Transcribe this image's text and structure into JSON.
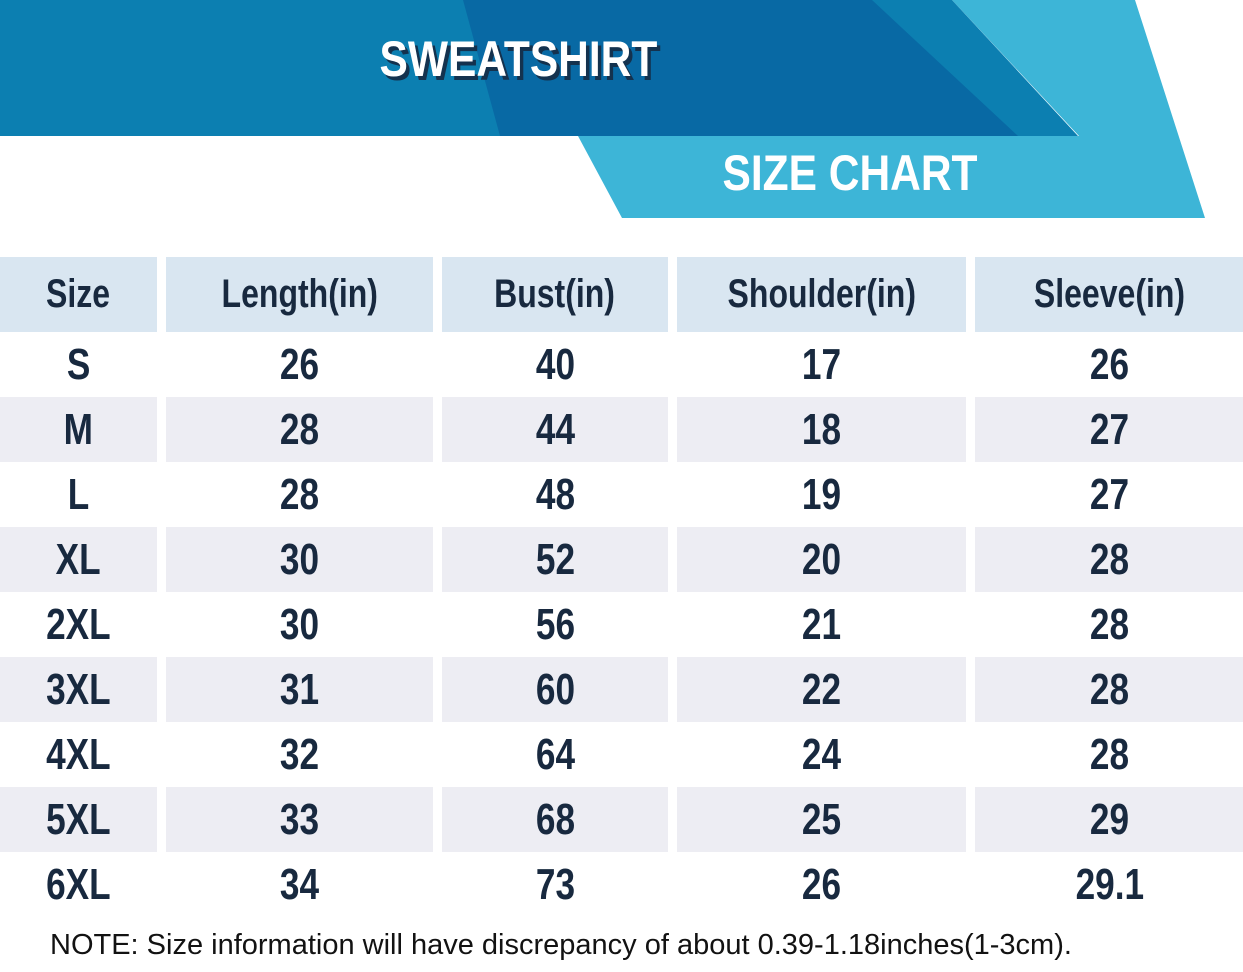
{
  "header": {
    "title": "SWEATSHIRT",
    "subtitle": "SIZE CHART"
  },
  "colors": {
    "banner_blue": "#0c7fb1",
    "banner_dark_blue": "#0869a4",
    "ribbon_teal": "#3db5d7",
    "header_row_bg": "#d9e6f1",
    "alt_row_bg": "#ededf3",
    "table_text_navy": "#18293f",
    "title_shadow_navy": "#14324e"
  },
  "chart_data": {
    "type": "table",
    "title": "SWEATSHIRT",
    "subtitle": "SIZE CHART",
    "columns": [
      "Size",
      "Length(in)",
      "Bust(in)",
      "Shoulder(in)",
      "Sleeve(in)"
    ],
    "rows": [
      [
        "S",
        "26",
        "40",
        "17",
        "26"
      ],
      [
        "M",
        "28",
        "44",
        "18",
        "27"
      ],
      [
        "L",
        "28",
        "48",
        "19",
        "27"
      ],
      [
        "XL",
        "30",
        "52",
        "20",
        "28"
      ],
      [
        "2XL",
        "30",
        "56",
        "21",
        "28"
      ],
      [
        "3XL",
        "31",
        "60",
        "22",
        "28"
      ],
      [
        "4XL",
        "32",
        "64",
        "24",
        "28"
      ],
      [
        "5XL",
        "33",
        "68",
        "25",
        "29"
      ],
      [
        "6XL",
        "34",
        "73",
        "26",
        "29.1"
      ]
    ]
  },
  "note": "NOTE: Size information will have discrepancy of about 0.39-1.18inches(1-3cm)."
}
